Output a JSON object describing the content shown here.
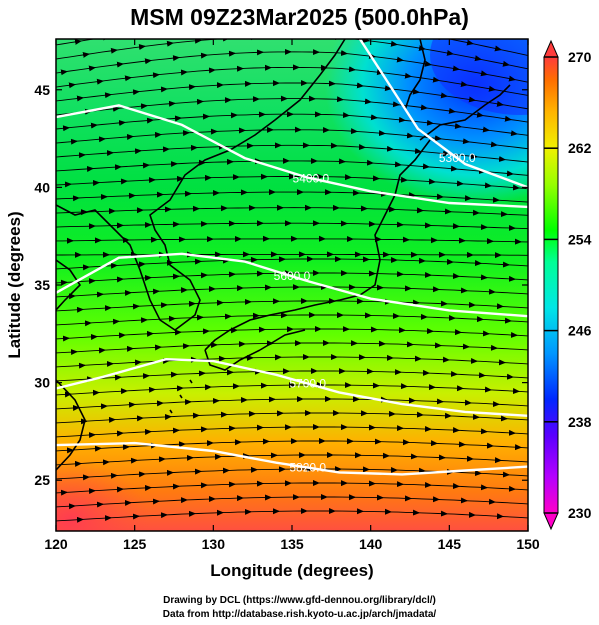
{
  "title": "MSM 09Z23Mar2025 (500.0hPa)",
  "x_axis": {
    "label": "Longitude (degrees)",
    "min": 120,
    "max": 150,
    "ticks": [
      120,
      125,
      130,
      135,
      140,
      145,
      150
    ]
  },
  "y_axis": {
    "label": "Latitude  (degrees)",
    "min": 22.4,
    "max": 47.6,
    "ticks": [
      25,
      30,
      35,
      40,
      45
    ]
  },
  "colorbar": {
    "min": 230,
    "max": 270,
    "tick_labels": [
      270,
      262,
      254,
      246,
      238,
      230
    ],
    "colors": [
      "#ff00c8",
      "#b400ff",
      "#5a00ff",
      "#0028ff",
      "#0096ff",
      "#00e6e6",
      "#00ff96",
      "#00ff00",
      "#96ff00",
      "#f0f000",
      "#ffb400",
      "#ff6e00",
      "#ff3c3c"
    ]
  },
  "contours": [
    {
      "label": "5300.0",
      "lat_at_lon": [
        [
          139,
          48.0
        ],
        [
          141,
          45.5
        ],
        [
          143,
          43.0
        ],
        [
          146,
          41.2
        ],
        [
          150,
          40.0
        ]
      ]
    },
    {
      "label": "5400.0",
      "lat_at_lon": [
        [
          120,
          43.6
        ],
        [
          124,
          44.2
        ],
        [
          128,
          43.2
        ],
        [
          132,
          41.5
        ],
        [
          136,
          40.5
        ],
        [
          140,
          39.8
        ],
        [
          145,
          39.2
        ],
        [
          150,
          39.0
        ]
      ]
    },
    {
      "label": "5600.0",
      "lat_at_lon": [
        [
          120,
          34.6
        ],
        [
          124,
          36.4
        ],
        [
          128,
          36.6
        ],
        [
          132,
          36.2
        ],
        [
          136,
          35.2
        ],
        [
          140,
          34.3
        ],
        [
          145,
          33.7
        ],
        [
          150,
          33.4
        ]
      ]
    },
    {
      "label": "5700.0",
      "lat_at_lon": [
        [
          120,
          29.7
        ],
        [
          123,
          30.3
        ],
        [
          127,
          31.2
        ],
        [
          130,
          31.1
        ],
        [
          134,
          30.4
        ],
        [
          138,
          29.5
        ],
        [
          142,
          28.9
        ],
        [
          146,
          28.5
        ],
        [
          150,
          28.3
        ]
      ]
    },
    {
      "label": "5820.0",
      "lat_at_lon": [
        [
          120,
          26.8
        ],
        [
          125,
          26.9
        ],
        [
          130,
          26.5
        ],
        [
          134,
          25.9
        ],
        [
          138,
          25.4
        ],
        [
          142,
          25.3
        ],
        [
          146,
          25.5
        ],
        [
          150,
          25.7
        ]
      ]
    }
  ],
  "credits": {
    "line1": "Drawing by DCL (https://www.gfd-dennou.org/library/dcl/)",
    "line2": "Data from http://database.rish.kyoto-u.ac.jp/arch/jmadata/"
  }
}
